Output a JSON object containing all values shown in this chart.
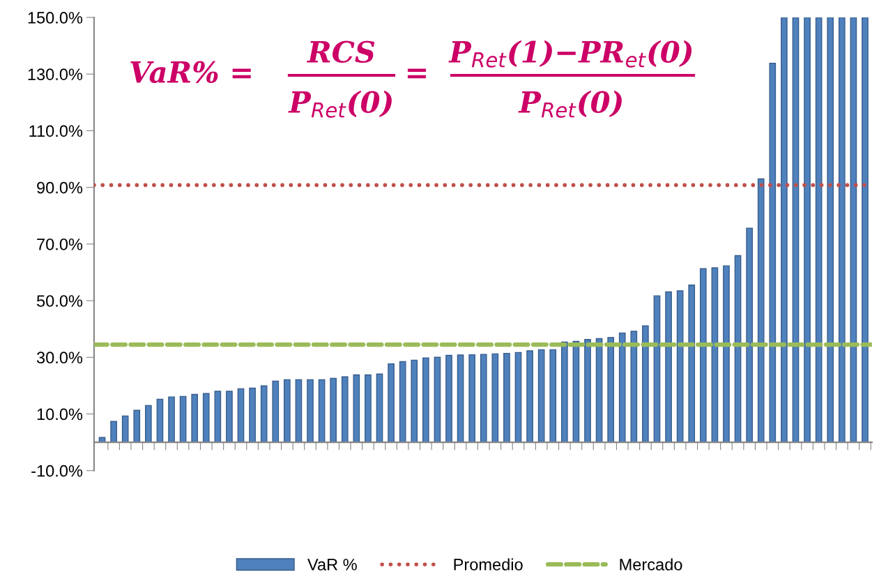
{
  "chart_data": {
    "type": "bar",
    "categories": [
      null,
      null,
      null,
      null,
      null,
      null,
      null,
      null,
      null,
      null,
      null,
      null,
      null,
      null,
      null,
      null,
      null,
      null,
      null,
      null,
      null,
      null,
      null,
      null,
      null,
      null,
      null,
      null,
      null,
      null,
      null,
      null,
      null,
      null,
      null,
      null,
      null,
      null,
      null,
      null,
      null,
      null,
      null,
      null,
      null,
      null,
      null,
      null,
      null,
      null,
      null,
      null,
      null,
      null,
      null,
      null,
      null,
      null,
      null,
      null,
      null,
      null,
      null,
      null,
      null,
      null,
      null
    ],
    "series": [
      {
        "name": "VaR %",
        "color": "#4f81bd",
        "values": [
          1.7,
          7.4,
          9.3,
          11.3,
          13.0,
          15.2,
          16.0,
          16.2,
          16.9,
          17.2,
          18.0,
          18.0,
          18.9,
          19.1,
          19.9,
          21.6,
          22.1,
          22.1,
          22.1,
          22.1,
          22.6,
          23.1,
          23.8,
          23.8,
          24.1,
          27.7,
          28.5,
          29.0,
          29.8,
          30.0,
          30.7,
          30.8,
          30.9,
          31.0,
          31.2,
          31.4,
          31.7,
          32.3,
          32.7,
          32.7,
          35.4,
          35.6,
          36.3,
          36.6,
          37.0,
          38.6,
          39.2,
          41.1,
          51.7,
          53.1,
          53.5,
          55.5,
          61.3,
          61.6,
          62.3,
          65.9,
          75.6,
          93.0,
          133.8,
          150,
          150,
          150,
          150,
          150,
          150,
          150,
          150
        ]
      }
    ],
    "ref_lines": [
      {
        "axis": "y",
        "value": 90.8,
        "label": "Promedio",
        "color": "#c0504d",
        "line_style": "dotted"
      },
      {
        "axis": "y",
        "value": 34.5,
        "label": "Mercado",
        "color": "#9bbb59",
        "line_style": "dashed"
      }
    ],
    "ylim": [
      -10,
      150
    ],
    "yticks": [
      {
        "value": -10,
        "label": "-10.0%"
      },
      {
        "value": 10,
        "label": "10.0%"
      },
      {
        "value": 30,
        "label": "30.0%"
      },
      {
        "value": 50,
        "label": "50.0%"
      },
      {
        "value": 70,
        "label": "70.0%"
      },
      {
        "value": 90,
        "label": "90.0%"
      },
      {
        "value": 110,
        "label": "110.0%"
      },
      {
        "value": 130,
        "label": "130.0%"
      },
      {
        "value": 150,
        "label": "150.0%"
      }
    ],
    "tick_labels": "y",
    "grid": false,
    "legend": "bottom",
    "annotations": [
      "VaR% =",
      "RCS",
      "P$_{Ret}$(0)",
      "=",
      "P$_{Ret}$(1)−PR$_{et}$(0)",
      "P$_{Ret}$(0)"
    ]
  }
}
